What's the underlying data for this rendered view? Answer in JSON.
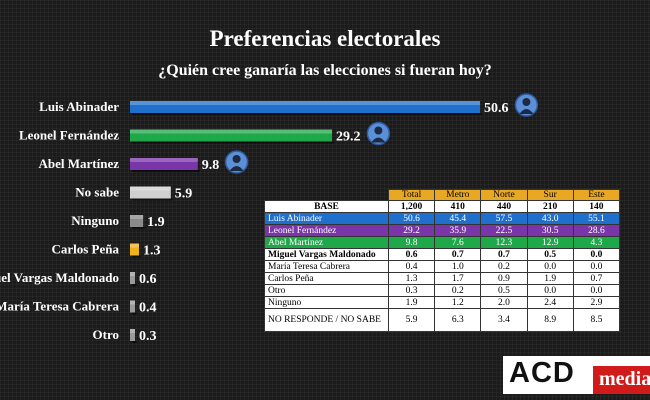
{
  "chart_data": {
    "type": "bar",
    "orientation": "horizontal",
    "title": "Preferencias electorales",
    "subtitle": "¿Quién cree ganaría las elecciones si fueran hoy?",
    "xlim": [
      0,
      55
    ],
    "grid": false,
    "categories": [
      "Luis Abinader",
      "Leonel Fernández",
      "Abel Martínez",
      "No sabe",
      "Ninguno",
      "Carlos Peña",
      "Miguel Vargas Maldonado",
      "María Teresa Cabrera",
      "Otro"
    ],
    "values": [
      50.6,
      29.2,
      9.8,
      5.9,
      1.9,
      1.3,
      0.6,
      0.4,
      0.3
    ],
    "value_labels": [
      "50.6",
      "29.2",
      "9.8",
      "5.9",
      "1.9",
      "1.3",
      "0.6",
      "0.4",
      "0.3"
    ],
    "colors": [
      "#1f6fcc",
      "#1fa84a",
      "#7a35a8",
      "#cfcfcf",
      "#8a8a8a",
      "#f0b21c",
      "#9a9a9a",
      "#9a9a9a",
      "#9a9a9a"
    ],
    "portraits_on": [
      "Luis Abinader",
      "Leonel Fernández",
      "Abel Martínez"
    ]
  },
  "table": {
    "headers": [
      "Total",
      "Metro",
      "Norte",
      "Sur",
      "Este"
    ],
    "rows": [
      {
        "label": "BASE",
        "values": [
          "1,200",
          "410",
          "440",
          "210",
          "140"
        ],
        "style": "base"
      },
      {
        "label": "Luis Abinader",
        "values": [
          "50.6",
          "45.4",
          "57.5",
          "43.0",
          "55.1"
        ],
        "bg": "#1f6fcc"
      },
      {
        "label": "Leonel Fernández",
        "values": [
          "29.2",
          "35.9",
          "22.5",
          "30.5",
          "28.6"
        ],
        "bg": "#7a35a8"
      },
      {
        "label": "Abel Martínez",
        "values": [
          "9.8",
          "7.6",
          "12.3",
          "12.9",
          "4.3"
        ],
        "bg": "#1fa84a"
      },
      {
        "label": "Miguel Vargas Maldonado",
        "values": [
          "0.6",
          "0.7",
          "0.7",
          "0.5",
          "0.0"
        ],
        "style": "bold"
      },
      {
        "label": "María Teresa Cabrera",
        "values": [
          "0.4",
          "1.0",
          "0.2",
          "0.0",
          "0.0"
        ]
      },
      {
        "label": "Carlos Peña",
        "values": [
          "1.3",
          "1.7",
          "0.9",
          "1.9",
          "0.7"
        ]
      },
      {
        "label": "Otro",
        "values": [
          "0.3",
          "0.2",
          "0.5",
          "0.0",
          "0.0"
        ]
      },
      {
        "label": "Ninguno",
        "values": [
          "1.9",
          "1.2",
          "2.0",
          "2.4",
          "2.9"
        ]
      },
      {
        "label": "NO RESPONDE / NO SABE",
        "values": [
          "5.9",
          "6.3",
          "3.4",
          "8.9",
          "8.5"
        ],
        "style": "tall"
      }
    ]
  },
  "logo": {
    "brand": "ACD",
    "media": "media"
  }
}
